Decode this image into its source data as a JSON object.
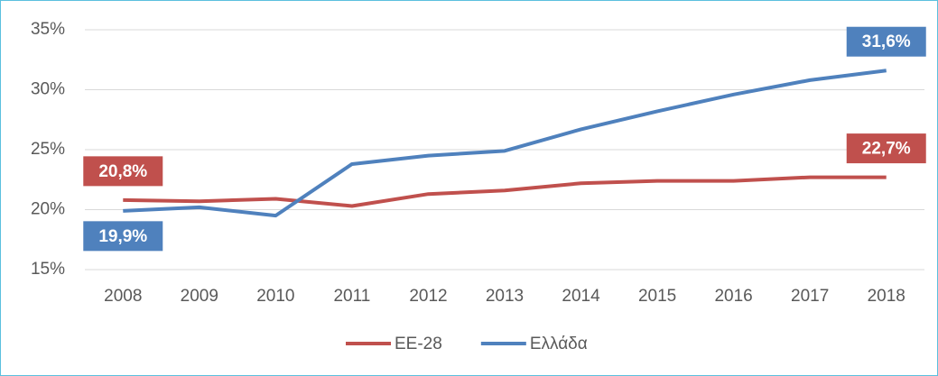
{
  "chart_data": {
    "type": "line",
    "categories": [
      "2008",
      "2009",
      "2010",
      "2011",
      "2012",
      "2013",
      "2014",
      "2015",
      "2016",
      "2017",
      "2018"
    ],
    "series": [
      {
        "name": "ΕΕ-28",
        "color": "#c0504d",
        "values": [
          20.8,
          20.7,
          20.9,
          20.3,
          21.3,
          21.6,
          22.2,
          22.4,
          22.4,
          22.7,
          22.7
        ],
        "value_labels": [
          "20,8%",
          null,
          null,
          null,
          null,
          null,
          null,
          null,
          null,
          null,
          "22,7%"
        ]
      },
      {
        "name": "Ελλάδα",
        "color": "#4f81bd",
        "values": [
          19.9,
          20.2,
          19.5,
          23.8,
          24.5,
          24.9,
          26.7,
          28.2,
          29.6,
          30.8,
          31.6
        ],
        "value_labels": [
          "19,9%",
          null,
          null,
          null,
          null,
          null,
          null,
          null,
          null,
          null,
          "31,6%"
        ]
      }
    ],
    "ylim": [
      15,
      35
    ],
    "yticks": [
      {
        "value": 15,
        "label": "15%"
      },
      {
        "value": 20,
        "label": "20%"
      },
      {
        "value": 25,
        "label": "25%"
      },
      {
        "value": 30,
        "label": "30%"
      },
      {
        "value": 35,
        "label": "35%"
      }
    ],
    "grid": true,
    "legend": "bottom"
  }
}
